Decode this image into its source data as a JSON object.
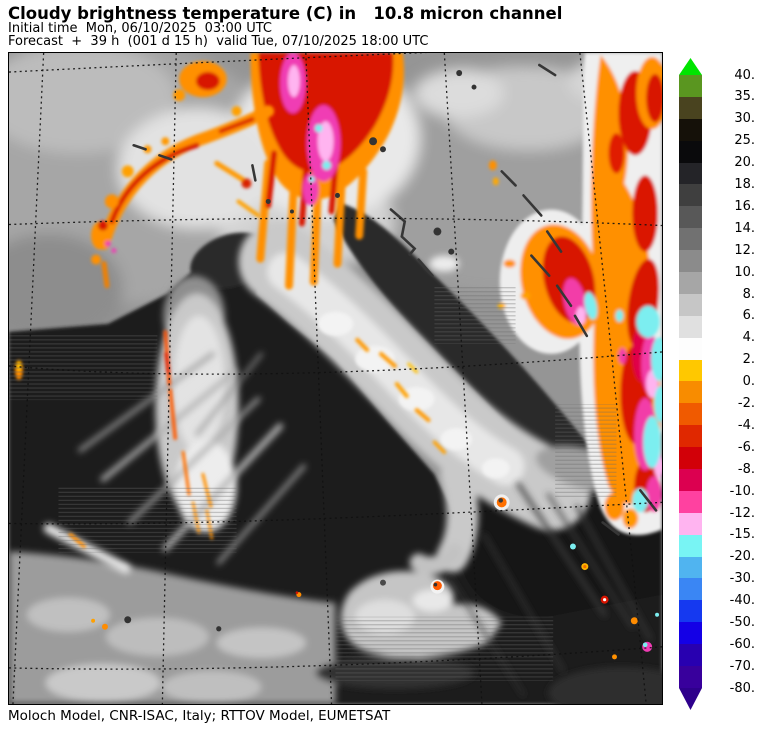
{
  "header": {
    "title": "Cloudy brightness temperature (C) in   10.8 micron channel",
    "initial_time": "Initial time  Mon, 06/10/2025  03:00 UTC",
    "forecast": "Forecast  +  39 h  (001 d 15 h)  valid Tue, 07/10/2025 18:00 UTC"
  },
  "footer": {
    "credit": "Moloch Model, CNR-ISAC, Italy; RTTOV Model, EUMETSAT"
  },
  "colorbar": {
    "over_color": "#00e400",
    "under_color": "#2e008c",
    "boundary_labels": [
      "40.",
      "35.",
      "30.",
      "25.",
      "20.",
      "18.",
      "16.",
      "14.",
      "12.",
      "10.",
      "8.",
      "6.",
      "4.",
      "2.",
      "0.",
      "-2.",
      "-4.",
      "-6.",
      "-8.",
      "-10.",
      "-12.",
      "-15.",
      "-20.",
      "-30.",
      "-40.",
      "-50.",
      "-60.",
      "-70.",
      "-80."
    ],
    "band_colors": [
      "#5a9620",
      "#49431f",
      "#151109",
      "#0a0a0c",
      "#242428",
      "#3f3f3f",
      "#585858",
      "#717171",
      "#8b8b8b",
      "#a6a6a6",
      "#c6c6c6",
      "#e0e0e0",
      "#fdfdfd",
      "#ffc800",
      "#f88c00",
      "#f05a00",
      "#e02800",
      "#d20008",
      "#dc0050",
      "#ff41a0",
      "#ffb4f0",
      "#78f4f4",
      "#50b4f0",
      "#3a86f4",
      "#1539f0",
      "#1400e6",
      "#2800b0",
      "#38009c"
    ]
  },
  "chart_data": {
    "type": "heatmap",
    "title": "Cloudy brightness temperature (C) in 10.8 micron channel",
    "units": "C",
    "initial_time": "Mon, 06/10/2025 03:00 UTC",
    "forecast_lead": "+ 39 h (001 d 15 h)",
    "valid_time": "Tue, 07/10/2025 18:00 UTC",
    "colorbar_boundaries_c": [
      40,
      35,
      30,
      25,
      20,
      18,
      16,
      14,
      12,
      10,
      8,
      6,
      4,
      2,
      0,
      -2,
      -4,
      -6,
      -8,
      -10,
      -12,
      -15,
      -20,
      -30,
      -40,
      -50,
      -60,
      -70,
      -80
    ],
    "over_range": "> 40",
    "under_range": "< -80",
    "legend_position": "right",
    "grid": "dotted graticule",
    "credit": "Moloch Model, CNR-ISAC, Italy; RTTOV Model, EUMETSAT"
  }
}
